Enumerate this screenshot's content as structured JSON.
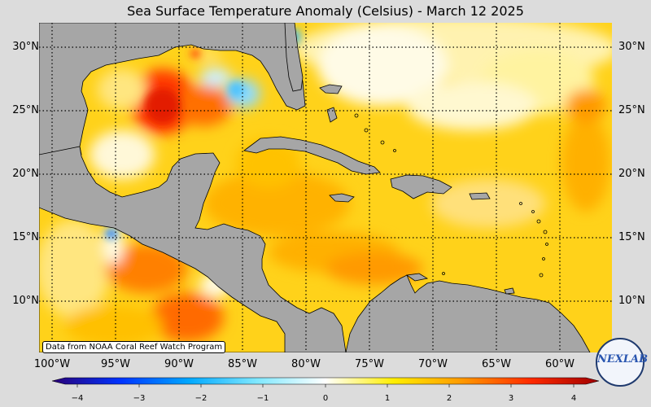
{
  "title": "Sea Surface Temperature Anomaly (Celsius) - March 12 2025",
  "credit": "Data from NOAA Coral Reef Watch Program",
  "logo_text": "NEXLAB",
  "lat_labels": [
    "30°N",
    "25°N",
    "20°N",
    "15°N",
    "10°N"
  ],
  "lon_labels": [
    "100°W",
    "95°W",
    "90°W",
    "85°W",
    "80°W",
    "75°W",
    "70°W",
    "65°W",
    "60°W"
  ],
  "colorbar": {
    "ticks": [
      "−4",
      "−3",
      "−2",
      "−1",
      "0",
      "1",
      "2",
      "3",
      "4"
    ],
    "min": -4,
    "max": 4,
    "colors": [
      "#2a0077",
      "#0033ff",
      "#00a8ff",
      "#80e8ff",
      "#ffffff",
      "#ffee00",
      "#ff9900",
      "#ff2a00",
      "#a00000"
    ]
  },
  "map": {
    "land_color": "#a6a6a6",
    "ocean_base": "#ffd21a",
    "extent": {
      "lon": [
        -101,
        -56
      ],
      "lat": [
        6,
        32
      ]
    }
  }
}
